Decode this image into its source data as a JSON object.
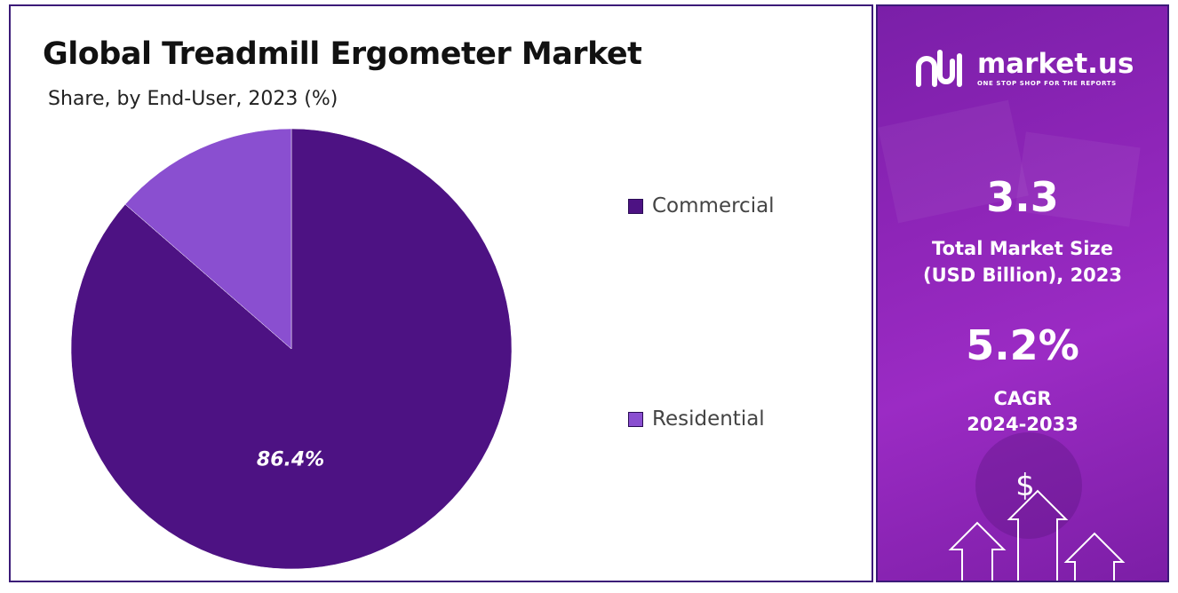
{
  "header": {
    "title": "Global Treadmill Ergometer Market",
    "subtitle": "Share, by End-User, 2023 (%)"
  },
  "chart_data": {
    "type": "pie",
    "title": "Global Treadmill Ergometer Market",
    "subtitle": "Share, by End-User, 2023 (%)",
    "categories": [
      "Commercial",
      "Residential"
    ],
    "values": [
      86.4,
      13.6
    ],
    "colors": [
      "#4d1283",
      "#8a4fd0"
    ],
    "data_labels": [
      "86.4%",
      ""
    ],
    "legend_position": "right"
  },
  "sidebar": {
    "brand_name": "market.us",
    "brand_tagline": "ONE STOP SHOP FOR THE REPORTS",
    "market_size_value": "3.3",
    "market_size_label_line1": "Total Market Size",
    "market_size_label_line2": "(USD Billion), 2023",
    "cagr_value": "5.2%",
    "cagr_label_line1": "CAGR",
    "cagr_label_line2": "2024-2033",
    "dollar_symbol": "$",
    "icons": [
      "market-us-logo-icon",
      "dollar-icon",
      "arrow-up-icon"
    ],
    "accent_color": "#8e25b8"
  }
}
